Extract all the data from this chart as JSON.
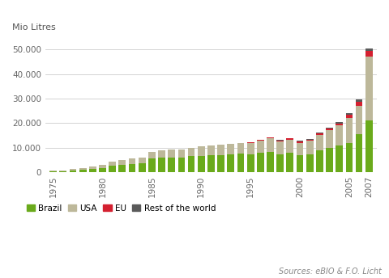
{
  "years": [
    1975,
    1976,
    1977,
    1978,
    1979,
    1980,
    1981,
    1982,
    1983,
    1984,
    1985,
    1986,
    1987,
    1988,
    1989,
    1990,
    1991,
    1992,
    1993,
    1994,
    1995,
    1996,
    1997,
    1998,
    1999,
    2000,
    2001,
    2002,
    2003,
    2004,
    2005,
    2006,
    2007
  ],
  "brazil": [
    200,
    300,
    600,
    900,
    1400,
    1700,
    2600,
    3000,
    3400,
    3600,
    5600,
    5800,
    6100,
    6000,
    6500,
    6700,
    7000,
    7000,
    7400,
    7500,
    7200,
    7900,
    8300,
    7400,
    7900,
    6800,
    7200,
    9000,
    10000,
    11000,
    12000,
    15500,
    21000
  ],
  "usa": [
    500,
    500,
    600,
    700,
    900,
    1200,
    1600,
    2000,
    2200,
    2300,
    2800,
    3000,
    3200,
    3300,
    3500,
    3900,
    4000,
    4200,
    4300,
    4500,
    4700,
    5000,
    5400,
    5100,
    5200,
    5200,
    5500,
    6000,
    7000,
    8100,
    10000,
    11500,
    26000
  ],
  "eu": [
    0,
    0,
    0,
    0,
    0,
    0,
    0,
    0,
    0,
    0,
    0,
    0,
    0,
    0,
    0,
    0,
    0,
    0,
    0,
    0,
    300,
    300,
    400,
    500,
    600,
    600,
    600,
    700,
    700,
    800,
    1500,
    1700,
    2300
  ],
  "rest": [
    0,
    0,
    0,
    0,
    0,
    0,
    0,
    0,
    0,
    0,
    0,
    0,
    0,
    0,
    0,
    0,
    0,
    0,
    0,
    0,
    100,
    100,
    100,
    100,
    100,
    200,
    300,
    300,
    400,
    500,
    700,
    800,
    1200
  ],
  "brazil_color": "#6aaa1b",
  "usa_color": "#bdb89a",
  "eu_color": "#d42030",
  "rest_color": "#5a5a5a",
  "ylabel": "Mio Litres",
  "ylim": [
    0,
    55000
  ],
  "yticks": [
    0,
    10000,
    20000,
    30000,
    40000,
    50000
  ],
  "ytick_labels": [
    "0",
    "10.000",
    "20.000",
    "30.000",
    "40.000",
    "50.000"
  ],
  "source_text": "Sources: eBIO & F.O. Licht",
  "legend_labels": [
    "Brazil",
    "USA",
    "EU",
    "Rest of the world"
  ],
  "background_color": "#ffffff",
  "grid_color": "#cccccc"
}
